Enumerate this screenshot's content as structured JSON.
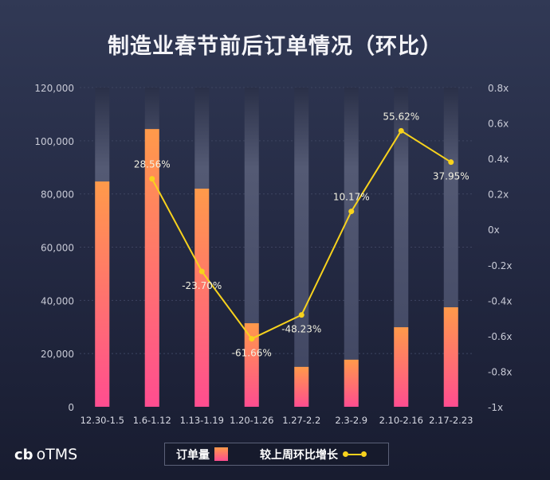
{
  "title": "制造业春节前后订单情况（环比）",
  "logo": {
    "mark": "cb",
    "text": "oTMS"
  },
  "legend": {
    "bar_label": "订单量",
    "line_label": "较上周环比增长"
  },
  "colors": {
    "bar_top": "#ff9a4a",
    "bar_bottom": "#ff4d90",
    "line": "#f7d21d",
    "track": "#5a6079"
  },
  "chart_data": {
    "type": "bar+line",
    "title": "制造业春节前后订单情况（环比）",
    "categories": [
      "12.30-1.5",
      "1.6-1.12",
      "1.13-1.19",
      "1.20-1.26",
      "1.27-2.2",
      "2.3-2.9",
      "2.10-2.16",
      "2.17-2.23"
    ],
    "series": [
      {
        "name": "订单量",
        "type": "bar",
        "axis": "left",
        "values": [
          84700,
          104400,
          82000,
          31400,
          15000,
          17700,
          29900,
          37400
        ]
      },
      {
        "name": "较上周环比增长",
        "type": "line",
        "axis": "right",
        "values": [
          null,
          0.2856,
          -0.237,
          -0.6166,
          -0.4823,
          0.1017,
          0.5562,
          0.3795
        ],
        "labels": [
          "",
          "28.56%",
          "-23.70%",
          "-61.66%",
          "-48.23%",
          "10.17%",
          "55.62%",
          "37.95%"
        ]
      }
    ],
    "left_axis": {
      "ylim": [
        0,
        120000
      ],
      "ticks": [
        "0",
        "20,000",
        "40,000",
        "60,000",
        "80,000",
        "100,000",
        "120,000"
      ]
    },
    "right_axis": {
      "ylim": [
        -1,
        0.8
      ],
      "ticks": [
        "-1x",
        "-0.8x",
        "-0.6x",
        "-0.4x",
        "-0.2x",
        "0x",
        "0.2x",
        "0.4x",
        "0.6x",
        "0.8x"
      ]
    },
    "grid": true,
    "legend_position": "bottom"
  }
}
